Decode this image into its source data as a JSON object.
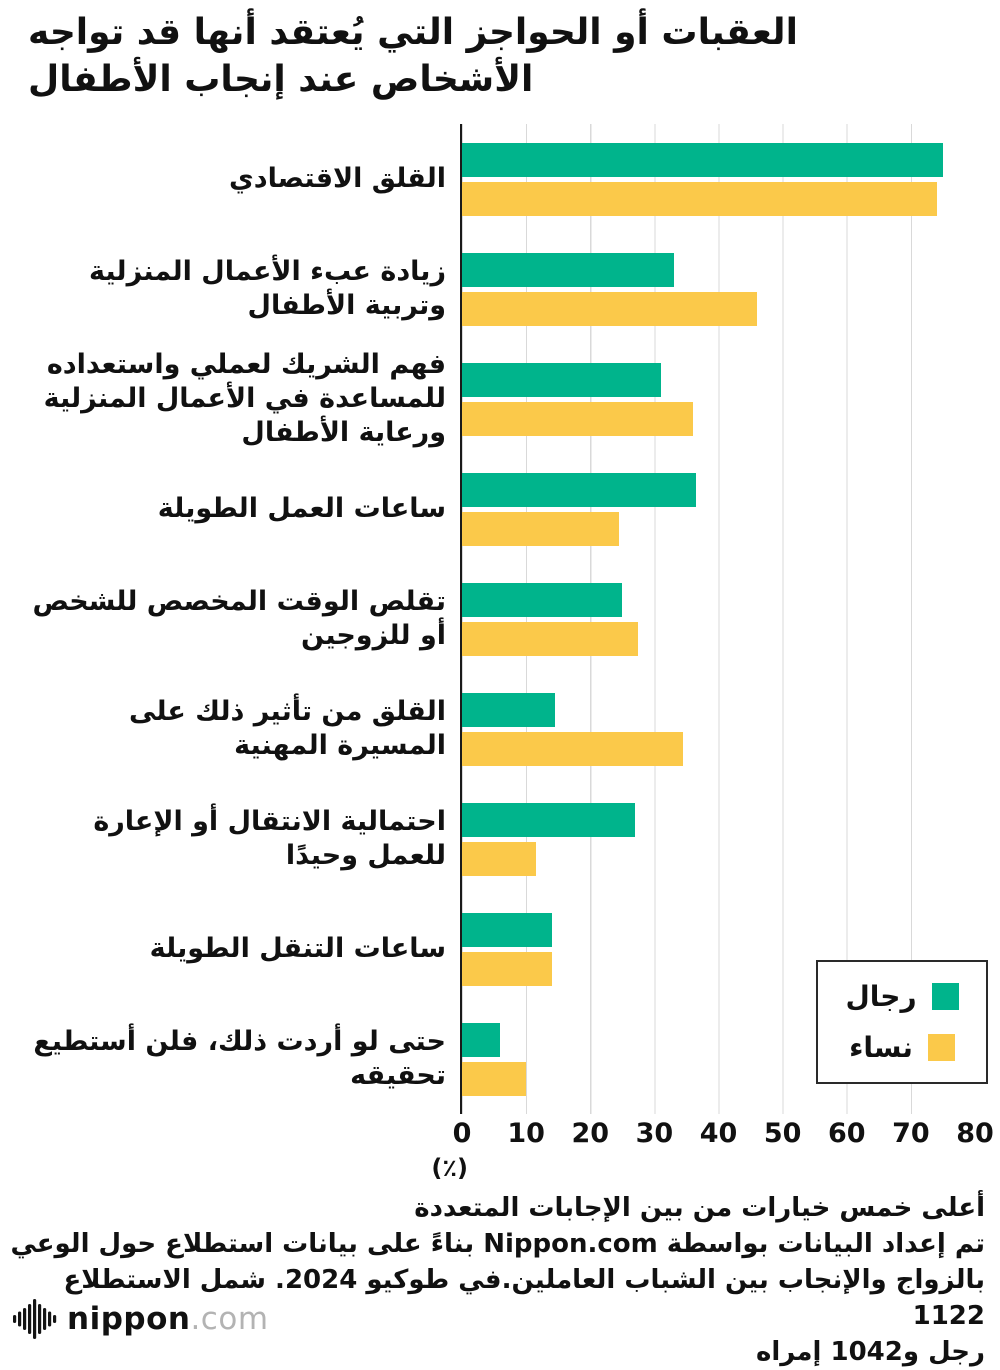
{
  "title": "العقبات أو الحواجز التي يُعتقد أنها قد تواجه الأشخاص عند إنجاب الأطفال",
  "chart_data": {
    "type": "bar",
    "orientation": "horizontal",
    "categories": [
      "القلق الاقتصادي",
      "زيادة عبء الأعمال المنزلية وتربية الأطفال",
      "فهم الشريك لعملي واستعداده للمساعدة في الأعمال المنزلية ورعاية الأطفال",
      "ساعات العمل الطويلة",
      "تقلص الوقت المخصص للشخص أو للزوجين",
      "القلق من تأثير ذلك على المسيرة المهنية",
      "احتمالية الانتقال أو الإعارة للعمل وحيدًا",
      "ساعات التنقل الطويلة",
      "حتى لو أردت ذلك، فلن أستطيع تحقيقه"
    ],
    "series": [
      {
        "name": "رجال",
        "color": "#00b48c",
        "values": [
          75,
          33,
          31,
          36.5,
          25,
          14.5,
          27,
          14,
          6
        ]
      },
      {
        "name": "نساء",
        "color": "#fbc94a",
        "values": [
          74,
          46,
          36,
          24.5,
          27.5,
          34.5,
          11.5,
          14,
          10
        ]
      }
    ],
    "xlim": [
      0,
      80
    ],
    "xticks": [
      0,
      10,
      20,
      30,
      40,
      50,
      60,
      70,
      80
    ],
    "xlabel": "(٪)",
    "grid": true,
    "legend_position": "bottom-right",
    "colors": {
      "grid": "#d9d9d9",
      "axis": "#1a1a1a"
    }
  },
  "footer": {
    "lines": [
      "أعلى خمس خيارات من بين الإجابات المتعددة",
      "تم إعداد البيانات بواسطة Nippon.com بناءً على بيانات استطلاع حول الوعي",
      "بالزواج والإنجاب بين الشباب العاملين.في طوكيو 2024. شمل الاستطلاع 1122",
      "رجل و1042 إمراه"
    ]
  },
  "logo": {
    "name": "nippon",
    "tld": ".com"
  }
}
